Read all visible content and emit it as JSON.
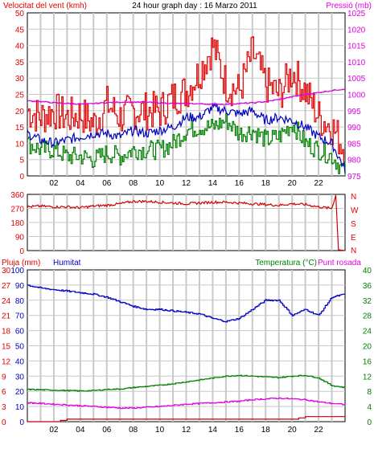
{
  "header": {
    "left_label": "Velocitat del vent (kmh)",
    "title": "24 hour graph day : 16 Marzo 2011",
    "right_label": "Pressió (mb)"
  },
  "panel2": {
    "dir_labels": [
      "N",
      "W",
      "S",
      "E",
      "N"
    ]
  },
  "panel3": {
    "label_rain": "Pluja (mm)",
    "label_hum": "Humitat",
    "label_temp": "Temperatura (°C)",
    "label_dew": "Punt rosada"
  },
  "colors": {
    "wind_gust": "#e00000",
    "wind_avg": "#008000",
    "wind_dir": "#0000c0",
    "pressure": "#e000e0",
    "direction": "#d00000",
    "humidity": "#0000c0",
    "temperature": "#008000",
    "dewpoint": "#e000e0",
    "rain": "#c00000",
    "grid": "#c8c8c8"
  },
  "chart_data": [
    {
      "type": "line",
      "x_ticks": [
        "02",
        "04",
        "06",
        "08",
        "10",
        "12",
        "14",
        "16",
        "18",
        "20",
        "22"
      ],
      "y_left_ticks": [
        0,
        5,
        10,
        15,
        20,
        25,
        30,
        35,
        40,
        45,
        50
      ],
      "y_left_range": [
        0,
        50
      ],
      "y_right_ticks": [
        975,
        980,
        985,
        990,
        995,
        1000,
        1005,
        1010,
        1015,
        1020,
        1025
      ],
      "y_right_range": [
        975,
        1025
      ],
      "grid": true,
      "x": [
        0,
        1,
        2,
        3,
        4,
        5,
        6,
        7,
        8,
        9,
        10,
        11,
        12,
        13,
        14,
        15,
        16,
        17,
        18,
        19,
        20,
        21,
        22,
        23,
        24
      ],
      "series": [
        {
          "name": "Velocitat del vent",
          "axis": "left",
          "values": [
            20,
            18,
            20,
            18,
            19,
            16,
            22,
            18,
            20,
            20,
            20,
            24,
            26,
            32,
            40,
            28,
            26,
            38,
            28,
            25,
            32,
            26,
            18,
            15,
            8
          ]
        },
        {
          "axis": "left",
          "values": [
            10,
            8,
            8,
            6,
            6,
            5,
            7,
            6,
            8,
            8,
            8,
            10,
            14,
            15,
            15,
            17,
            13,
            14,
            11,
            12,
            16,
            10,
            8,
            6,
            1
          ]
        },
        {
          "axis": "left",
          "values": [
            13,
            11,
            10,
            11,
            12,
            13,
            13,
            12,
            14,
            13,
            14,
            15,
            18,
            18,
            21,
            20,
            19,
            20,
            17,
            18,
            17,
            15,
            12,
            10,
            2
          ]
        },
        {
          "name": "Pressió",
          "axis": "right",
          "values": [
            998,
            997.8,
            997.4,
            997.2,
            997,
            997.2,
            997.5,
            997.6,
            997.6,
            997.6,
            997.4,
            997.2,
            997.2,
            997.1,
            997,
            997,
            997.2,
            997.4,
            997.8,
            998.5,
            999.3,
            1000,
            1000.6,
            1001.2,
            1001.7
          ]
        }
      ]
    },
    {
      "type": "line",
      "y_ticks": [
        0,
        90,
        180,
        270,
        360
      ],
      "y_range": [
        0,
        360
      ],
      "x": [
        0,
        1,
        2,
        3,
        4,
        5,
        6,
        7,
        8,
        9,
        10,
        11,
        12,
        13,
        14,
        15,
        16,
        17,
        18,
        19,
        20,
        21,
        22,
        23,
        23.3,
        23.5,
        24
      ],
      "series": [
        {
          "values": [
            280,
            285,
            280,
            280,
            275,
            285,
            290,
            300,
            315,
            315,
            310,
            305,
            300,
            305,
            310,
            310,
            305,
            300,
            295,
            290,
            300,
            295,
            280,
            270,
            355,
            5,
            0
          ]
        }
      ]
    },
    {
      "type": "line",
      "y_left_ticks": [
        0,
        10,
        20,
        30,
        40,
        50,
        60,
        70,
        80,
        90,
        100
      ],
      "y_left_range": [
        0,
        100
      ],
      "y_left2_ticks": [
        0,
        3,
        6,
        9,
        12,
        15,
        18,
        21,
        24,
        27,
        30
      ],
      "y_left2_range": [
        0,
        30
      ],
      "y_right_ticks": [
        0,
        4,
        8,
        12,
        16,
        20,
        24,
        28,
        32,
        36,
        40
      ],
      "y_right_range": [
        0,
        40
      ],
      "x": [
        0,
        1,
        2,
        3,
        4,
        5,
        6,
        7,
        8,
        9,
        10,
        11,
        12,
        13,
        14,
        15,
        16,
        17,
        18,
        19,
        20,
        21,
        22,
        23,
        24
      ],
      "series": [
        {
          "name": "Pluja",
          "axis": "left",
          "values": [
            0,
            0,
            0,
            0.5,
            0.5,
            0.5,
            0.5,
            0.5,
            0.5,
            0.5,
            0.5,
            0.5,
            0.5,
            0.5,
            0.5,
            0.5,
            0.5,
            0.5,
            0.5,
            0.5,
            0.5,
            1,
            1,
            1,
            1
          ]
        },
        {
          "name": "Humitat",
          "axis": "left",
          "values": [
            90,
            88,
            87,
            86,
            85,
            84,
            82,
            79,
            76,
            74,
            74,
            73,
            72,
            71,
            68,
            66,
            68,
            74,
            80,
            80,
            70,
            74,
            70,
            82,
            84
          ]
        },
        {
          "name": "Temperatura",
          "axis": "right",
          "values": [
            8.5,
            8.4,
            8.3,
            8.2,
            8.1,
            8.2,
            8.5,
            8.6,
            9.0,
            9.3,
            9.6,
            10.0,
            10.5,
            11.0,
            11.5,
            12.0,
            12.2,
            12.0,
            11.8,
            11.6,
            12.0,
            12.2,
            11.5,
            9.5,
            9.0
          ]
        },
        {
          "name": "Punt rosada",
          "axis": "right",
          "values": [
            5,
            4.8,
            4.6,
            4.4,
            4.2,
            4.0,
            3.8,
            3.6,
            3.6,
            3.8,
            4.0,
            4.3,
            4.6,
            4.8,
            5.0,
            5.2,
            5.4,
            5.8,
            6.0,
            6.2,
            6.0,
            5.8,
            5.2,
            4.8,
            4.5
          ]
        }
      ]
    }
  ]
}
